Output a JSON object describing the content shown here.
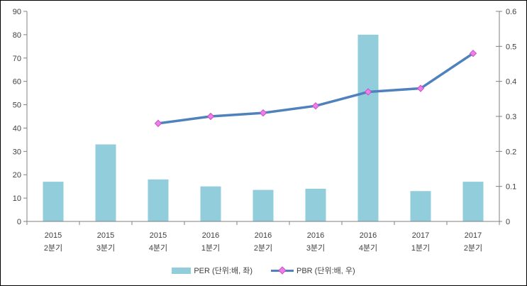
{
  "chart_data": {
    "type": "combo",
    "categories": [
      {
        "line1": "2015",
        "line2": "2분기"
      },
      {
        "line1": "2015",
        "line2": "3분기"
      },
      {
        "line1": "2015",
        "line2": "4분기"
      },
      {
        "line1": "2016",
        "line2": "1분기"
      },
      {
        "line1": "2016",
        "line2": "2분기"
      },
      {
        "line1": "2016",
        "line2": "3분기"
      },
      {
        "line1": "2016",
        "line2": "4분기"
      },
      {
        "line1": "2017",
        "line2": "1분기"
      },
      {
        "line1": "2017",
        "line2": "2분기"
      }
    ],
    "series": [
      {
        "name": "PER (단위:배, 좌)",
        "type": "bar",
        "axis": "left",
        "color": "#92CDDC",
        "values": [
          17,
          33,
          18,
          15,
          13.5,
          14,
          80,
          13,
          17
        ]
      },
      {
        "name": "PBR (단위:배, 우)",
        "type": "line",
        "axis": "right",
        "color": "#4F81BD",
        "marker_fill": "#F07CE8",
        "marker_stroke": "#C653C6",
        "values": [
          null,
          null,
          0.28,
          0.3,
          0.31,
          0.33,
          0.37,
          0.38,
          0.48
        ]
      }
    ],
    "left_axis": {
      "min": 0,
      "max": 90,
      "step": 10,
      "tick_labels": [
        "0",
        "10",
        "20",
        "30",
        "40",
        "50",
        "60",
        "70",
        "80",
        "90"
      ]
    },
    "right_axis": {
      "min": 0,
      "max": 0.6,
      "step": 0.1,
      "tick_labels": [
        "0",
        "0.1",
        "0.2",
        "0.3",
        "0.4",
        "0.5",
        "0.6"
      ]
    },
    "grid": false,
    "legend_position": "bottom",
    "colors": {
      "axis": "#808080",
      "text": "#3F3F3F",
      "background": "#FFFFFF",
      "border": "#000000"
    }
  }
}
